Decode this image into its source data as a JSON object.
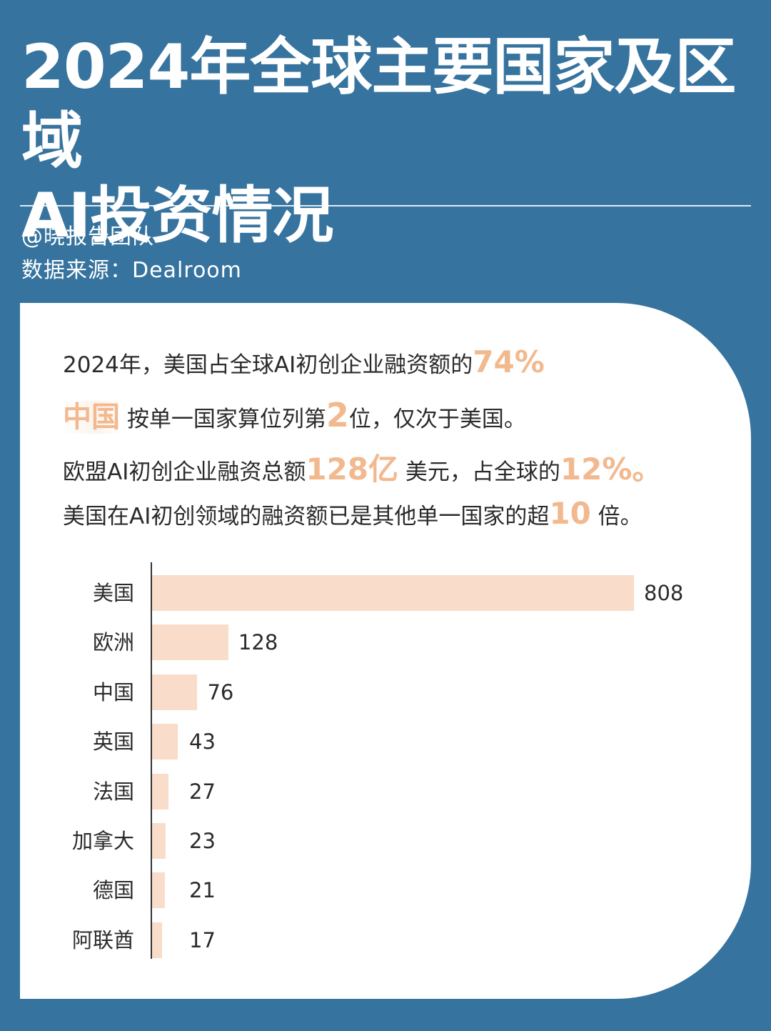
{
  "header": {
    "title_line1": "2024年全球主要国家及区域",
    "title_line2": "AI投资情况",
    "author": "@晓报告团队",
    "source": "数据来源：Dealroom"
  },
  "summary": {
    "line1": {
      "text": "2024年，美国占全球AI初创企业融资额的",
      "highlight": "74%"
    },
    "line2": {
      "highlight1": "中国",
      "text1": " 按单一国家算位列第",
      "highlight2": "2",
      "text2": "位，仅次于美国。"
    },
    "line3": {
      "text1": "欧盟AI初创企业融资总额",
      "highlight1": "128亿",
      "text2": " 美元，占全球的",
      "highlight2": "12%。"
    },
    "line4": {
      "text1": "美国在AI初创领域的融资额已是其他单一国家的超",
      "highlight": "10",
      "text2": " 倍。"
    }
  },
  "colors": {
    "background": "#36739e",
    "card": "#ffffff",
    "bar": "#f9dcc9",
    "highlight": "#f2b98f",
    "text": "#2b2b2b"
  },
  "chart_data": {
    "type": "bar",
    "orientation": "horizontal",
    "categories": [
      "美国",
      "欧洲",
      "中国",
      "英国",
      "法国",
      "加拿大",
      "德国",
      "阿联酋"
    ],
    "values": [
      808,
      128,
      76,
      43,
      27,
      23,
      21,
      17
    ],
    "data_labels": [
      "808",
      "128",
      "76",
      "43",
      "27",
      "23",
      "21",
      "17"
    ],
    "grid": false,
    "legend": "none"
  }
}
